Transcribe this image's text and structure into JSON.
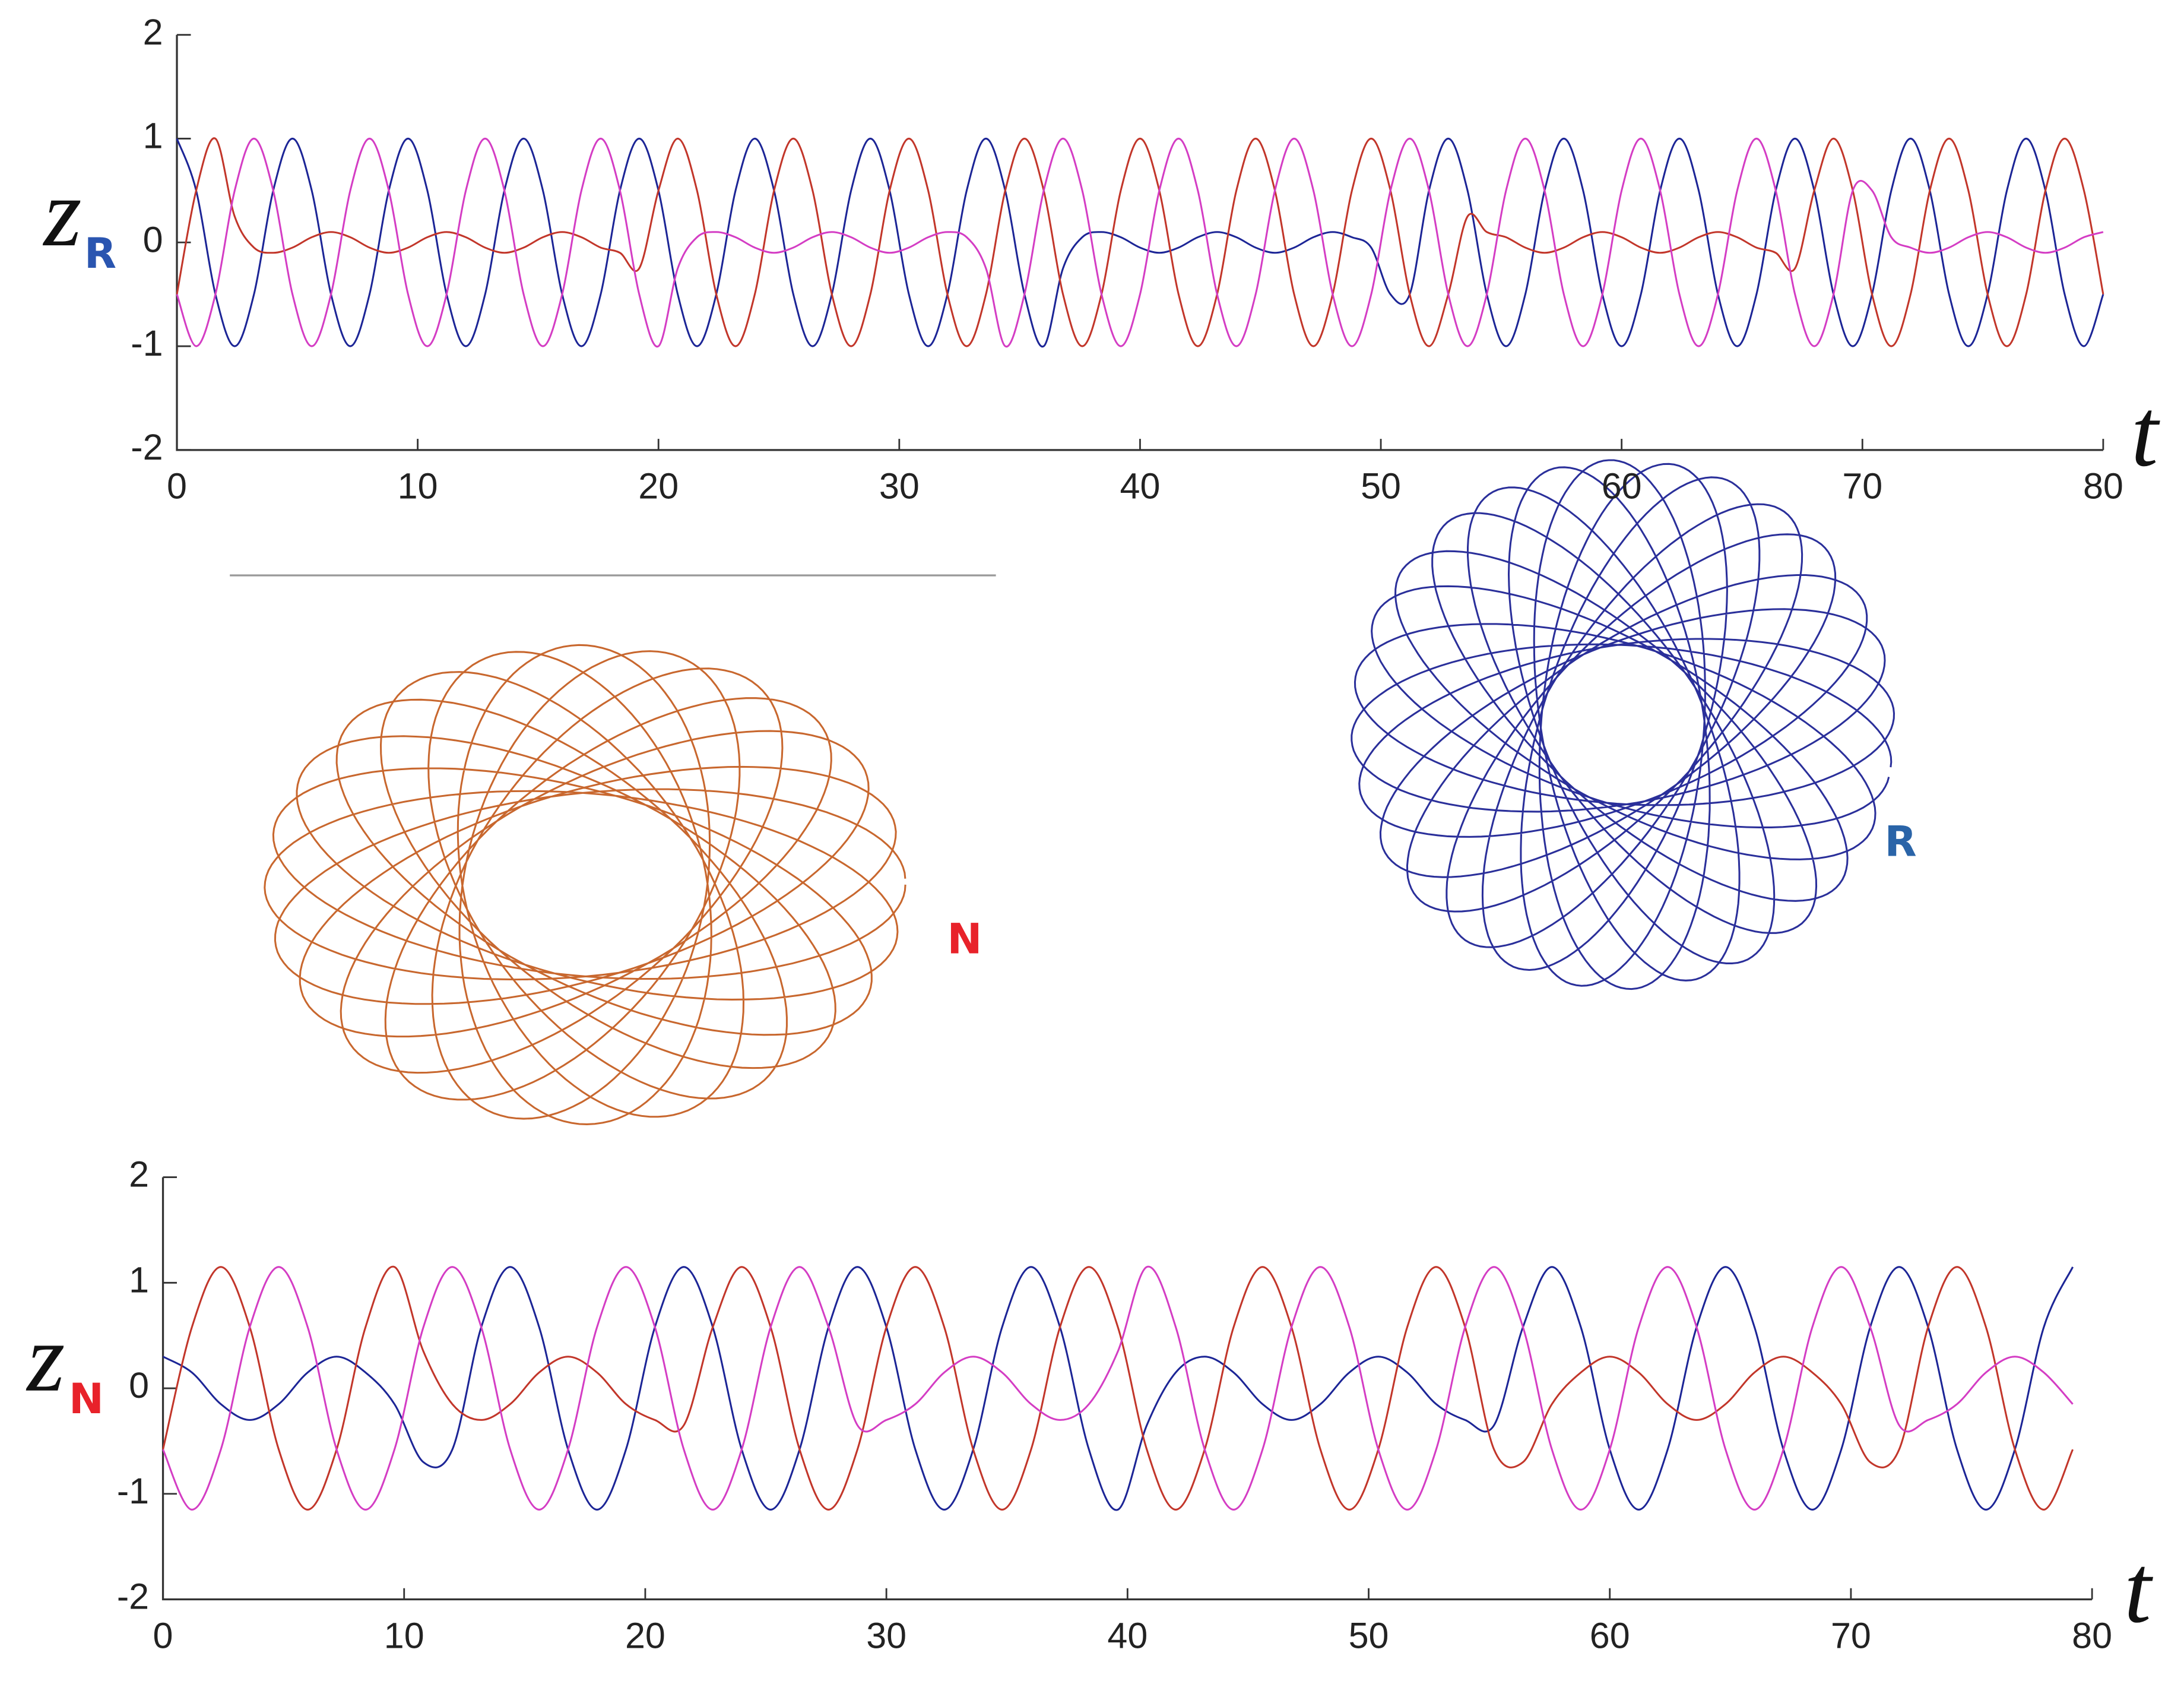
{
  "chart_data": [
    {
      "type": "line",
      "ylabel": "z",
      "ylabel_subscript": "R",
      "xlabel": "t",
      "xlim": [
        0,
        80
      ],
      "ylim": [
        -2,
        2
      ],
      "xticks": [
        0,
        10,
        20,
        30,
        40,
        50,
        60,
        70,
        80
      ],
      "yticks": [
        -2,
        -1,
        0,
        1,
        2
      ],
      "grid": false,
      "x": [
        0,
        0.8,
        1.6,
        2.4,
        3.2,
        4,
        4.8,
        5.6,
        6.4,
        7.2,
        8,
        8.8,
        9.6,
        10.4,
        11.2,
        12,
        12.8,
        13.6,
        14.4,
        15.2,
        16,
        16.8,
        17.6,
        18.4,
        19.2,
        20,
        20.8,
        21.6,
        22.4,
        23.2,
        24,
        24.8,
        25.6,
        26.4,
        27.2,
        28,
        28.8,
        29.6,
        30.4,
        31.2,
        32,
        32.8,
        33.6,
        34.4,
        35.2,
        36,
        36.8,
        37.6,
        38.4,
        39.2,
        40,
        40.8,
        41.6,
        42.4,
        43.2,
        44,
        44.8,
        45.6,
        46.4,
        47.2,
        48,
        48.8,
        49.6,
        50.4,
        51.2,
        52,
        52.8,
        53.6,
        54.4,
        55.2,
        56,
        56.8,
        57.6,
        58.4,
        59.2,
        60,
        60.8,
        61.6,
        62.4,
        63.2,
        64,
        64.8,
        65.6,
        66.4,
        67.2,
        68,
        68.8,
        69.6,
        70.4,
        71.2,
        72,
        72.8,
        73.6,
        74.4,
        75.2,
        76,
        76.8,
        77.6,
        78.4,
        79.2,
        80
      ],
      "series": [
        {
          "color": "#1c2596",
          "values": [
            1,
            0.5,
            -0.5,
            -1,
            -0.5,
            0.5,
            1,
            0.5,
            -0.5,
            -1,
            -0.5,
            0.5,
            1,
            0.5,
            -0.5,
            -1,
            -0.5,
            0.5,
            1,
            0.5,
            -0.5,
            -1,
            -0.5,
            0.5,
            1,
            0.5,
            -0.5,
            -1,
            -0.5,
            0.5,
            1,
            0.5,
            -0.5,
            -1,
            -0.5,
            0.5,
            1,
            0.5,
            -0.5,
            -1,
            -0.5,
            0.5,
            1,
            0.5,
            -0.5,
            -1,
            -0.25,
            0.05,
            0.1,
            0.05,
            -0.05,
            -0.1,
            -0.05,
            0.05,
            0.1,
            0.05,
            -0.05,
            -0.1,
            -0.05,
            0.05,
            0.1,
            0.05,
            -0.05,
            -0.5,
            -0.5,
            0.5,
            1,
            0.5,
            -0.5,
            -1,
            -0.5,
            0.5,
            1,
            0.5,
            -0.5,
            -1,
            -0.5,
            0.5,
            1,
            0.5,
            -0.5,
            -1,
            -0.5,
            0.5,
            1,
            0.5,
            -0.5,
            -1,
            -0.5,
            0.5,
            1,
            0.5,
            -0.5,
            -1,
            -0.5,
            0.5,
            1,
            0.5,
            -0.5,
            -1,
            -0.5
          ]
        },
        {
          "color": "#c2362a",
          "values": [
            -0.5,
            0.5,
            1,
            0.25,
            -0.05,
            -0.1,
            -0.05,
            0.05,
            0.1,
            0.05,
            -0.05,
            -0.1,
            -0.05,
            0.05,
            0.1,
            0.05,
            -0.05,
            -0.1,
            -0.05,
            0.05,
            0.1,
            0.05,
            -0.05,
            -0.1,
            -0.25,
            0.5,
            1,
            0.5,
            -0.5,
            -1,
            -0.5,
            0.5,
            1,
            0.5,
            -0.5,
            -1,
            -0.5,
            0.5,
            1,
            0.5,
            -0.5,
            -1,
            -0.5,
            0.5,
            1,
            0.5,
            -0.5,
            -1,
            -0.5,
            0.5,
            1,
            0.5,
            -0.5,
            -1,
            -0.5,
            0.5,
            1,
            0.5,
            -0.5,
            -1,
            -0.5,
            0.5,
            1,
            0.5,
            -0.5,
            -1,
            -0.5,
            0.25,
            0.1,
            0.05,
            -0.05,
            -0.1,
            -0.05,
            0.05,
            0.1,
            0.05,
            -0.05,
            -0.1,
            -0.05,
            0.05,
            0.1,
            0.05,
            -0.05,
            -0.1,
            -0.25,
            0.5,
            1,
            0.5,
            -0.5,
            -1,
            -0.5,
            0.5,
            1,
            0.5,
            -0.5,
            -1,
            -0.5,
            0.5,
            1,
            0.5,
            -0.5
          ]
        },
        {
          "color": "#d43dc4",
          "values": [
            -0.5,
            -1,
            -0.5,
            0.5,
            1,
            0.5,
            -0.5,
            -1,
            -0.5,
            0.5,
            1,
            0.5,
            -0.5,
            -1,
            -0.5,
            0.5,
            1,
            0.5,
            -0.5,
            -1,
            -0.5,
            0.5,
            1,
            0.5,
            -0.5,
            -1,
            -0.25,
            0.05,
            0.1,
            0.05,
            -0.05,
            -0.1,
            -0.05,
            0.05,
            0.1,
            0.05,
            -0.05,
            -0.1,
            -0.05,
            0.05,
            0.1,
            0.05,
            -0.25,
            -1,
            -0.5,
            0.5,
            1,
            0.5,
            -0.5,
            -1,
            -0.5,
            0.5,
            1,
            0.5,
            -0.5,
            -1,
            -0.5,
            0.5,
            1,
            0.5,
            -0.5,
            -1,
            -0.5,
            0.5,
            1,
            0.5,
            -0.5,
            -1,
            -0.5,
            0.5,
            1,
            0.5,
            -0.5,
            -1,
            -0.5,
            0.5,
            1,
            0.5,
            -0.5,
            -1,
            -0.5,
            0.5,
            1,
            0.5,
            -0.5,
            -1,
            -0.5,
            0.5,
            0.5,
            0.05,
            -0.05,
            -0.1,
            -0.05,
            0.05,
            0.1,
            0.05,
            -0.05,
            -0.1,
            -0.05,
            0.05,
            0.1
          ]
        }
      ]
    },
    {
      "type": "line",
      "ylabel": "z",
      "ylabel_subscript": "N",
      "xlabel": "t",
      "xlim": [
        0,
        80
      ],
      "ylim": [
        -2,
        2
      ],
      "xticks": [
        0,
        10,
        20,
        30,
        40,
        50,
        60,
        70,
        80
      ],
      "yticks": [
        -2,
        -1,
        0,
        1,
        2
      ],
      "grid": false,
      "x": [
        0,
        1.2,
        2.4,
        3.6,
        4.8,
        6,
        7.2,
        8.4,
        9.6,
        10.8,
        12,
        13.2,
        14.4,
        15.6,
        16.8,
        18,
        19.2,
        20.4,
        21.6,
        22.8,
        24,
        25.2,
        26.4,
        27.6,
        28.8,
        30,
        31.2,
        32.4,
        33.6,
        34.8,
        36,
        37.2,
        38.4,
        39.6,
        40.8,
        42,
        43.2,
        44.4,
        45.6,
        46.8,
        48,
        49.2,
        50.4,
        51.6,
        52.8,
        54,
        55.2,
        56.4,
        57.6,
        58.8,
        60,
        61.2,
        62.4,
        63.6,
        64.8,
        66,
        67.2,
        68.4,
        69.6,
        70.8,
        72,
        73.2,
        74.4,
        75.6,
        76.8,
        78,
        79.2
      ],
      "series": [
        {
          "color": "#1c2596",
          "values": [
            0.3,
            0.15,
            -0.15,
            -0.3,
            -0.15,
            0.15,
            0.3,
            0.15,
            -0.15,
            -0.7,
            -0.58,
            0.58,
            1.15,
            0.58,
            -0.58,
            -1.15,
            -0.58,
            0.58,
            1.15,
            0.58,
            -0.58,
            -1.15,
            -0.58,
            0.58,
            1.15,
            0.58,
            -0.58,
            -1.15,
            -0.58,
            0.58,
            1.15,
            0.58,
            -0.58,
            -1.15,
            -0.35,
            0.15,
            0.3,
            0.15,
            -0.15,
            -0.3,
            -0.15,
            0.15,
            0.3,
            0.15,
            -0.15,
            -0.3,
            -0.35,
            0.58,
            1.15,
            0.58,
            -0.58,
            -1.15,
            -0.58,
            0.58,
            1.15,
            0.58,
            -0.58,
            -1.15,
            -0.58,
            0.58,
            1.15,
            0.58,
            -0.58,
            -1.15,
            -0.58,
            0.58,
            1.15
          ]
        },
        {
          "color": "#c2362a",
          "values": [
            -0.58,
            0.58,
            1.15,
            0.58,
            -0.58,
            -1.15,
            -0.58,
            0.58,
            1.15,
            0.35,
            -0.15,
            -0.3,
            -0.15,
            0.15,
            0.3,
            0.15,
            -0.15,
            -0.3,
            -0.35,
            0.58,
            1.15,
            0.58,
            -0.58,
            -1.15,
            -0.58,
            0.58,
            1.15,
            0.58,
            -0.58,
            -1.15,
            -0.58,
            0.58,
            1.15,
            0.58,
            -0.58,
            -1.15,
            -0.58,
            0.58,
            1.15,
            0.58,
            -0.58,
            -1.15,
            -0.58,
            0.58,
            1.15,
            0.58,
            -0.58,
            -0.7,
            -0.15,
            0.15,
            0.3,
            0.15,
            -0.15,
            -0.3,
            -0.15,
            0.15,
            0.3,
            0.15,
            -0.15,
            -0.7,
            -0.58,
            0.58,
            1.15,
            0.58,
            -0.58,
            -1.15,
            -0.58
          ]
        },
        {
          "color": "#d43dc4",
          "values": [
            -0.58,
            -1.15,
            -0.58,
            0.58,
            1.15,
            0.58,
            -0.58,
            -1.15,
            -0.58,
            0.58,
            1.15,
            0.58,
            -0.58,
            -1.15,
            -0.58,
            0.58,
            1.15,
            0.58,
            -0.58,
            -1.15,
            -0.58,
            0.58,
            1.15,
            0.58,
            -0.35,
            -0.3,
            -0.15,
            0.15,
            0.3,
            0.15,
            -0.15,
            -0.3,
            -0.15,
            0.35,
            1.15,
            0.58,
            -0.58,
            -1.15,
            -0.58,
            0.58,
            1.15,
            0.58,
            -0.58,
            -1.15,
            -0.58,
            0.58,
            1.15,
            0.58,
            -0.58,
            -1.15,
            -0.58,
            0.58,
            1.15,
            0.58,
            -0.58,
            -1.15,
            -0.58,
            0.58,
            1.15,
            0.58,
            -0.35,
            -0.3,
            -0.15,
            0.15,
            0.3,
            0.15,
            -0.15
          ]
        }
      ]
    }
  ],
  "orbits": {
    "n_label": "N",
    "r_label": "R"
  }
}
